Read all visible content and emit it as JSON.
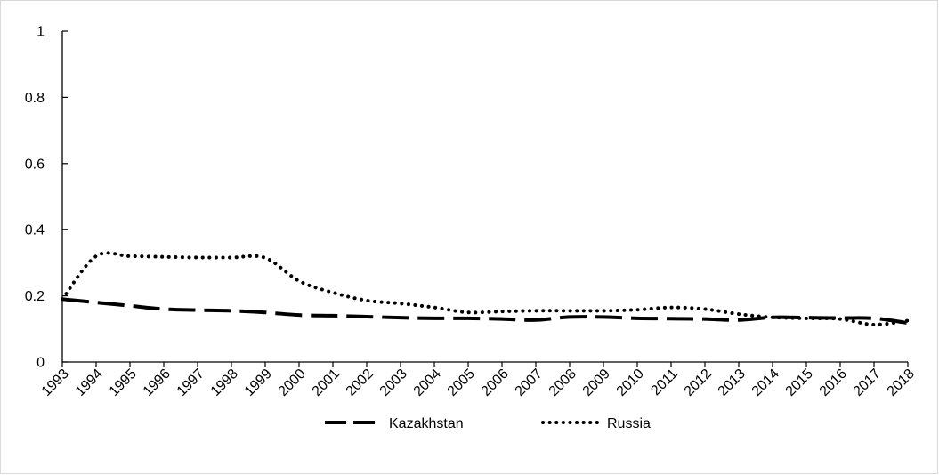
{
  "chart_data": {
    "type": "line",
    "title": "",
    "xlabel": "",
    "ylabel": "",
    "ylim": [
      0,
      1
    ],
    "yticks": [
      "0",
      "0.2",
      "0.4",
      "0.6",
      "0.8",
      "1"
    ],
    "x": [
      "1993",
      "1994",
      "1995",
      "1996",
      "1997",
      "1998",
      "1999",
      "2000",
      "2001",
      "2002",
      "2003",
      "2004",
      "2005",
      "2006",
      "2007",
      "2008",
      "2009",
      "2010",
      "2011",
      "2012",
      "2013",
      "2014",
      "2015",
      "2016",
      "2017",
      "2018"
    ],
    "grid": false,
    "legend_position": "bottom",
    "series": [
      {
        "name": "Kazakhstan",
        "style": "dashed",
        "color": "#000000",
        "values": [
          0.19,
          0.18,
          0.17,
          0.16,
          0.157,
          0.155,
          0.15,
          0.142,
          0.14,
          0.137,
          0.134,
          0.132,
          0.132,
          0.13,
          0.127,
          0.136,
          0.136,
          0.132,
          0.131,
          0.13,
          0.127,
          0.135,
          0.134,
          0.133,
          0.132,
          0.118
        ]
      },
      {
        "name": "Russia",
        "style": "dotted",
        "color": "#000000",
        "values": [
          0.19,
          0.32,
          0.32,
          0.318,
          0.316,
          0.316,
          0.315,
          0.245,
          0.21,
          0.186,
          0.177,
          0.165,
          0.15,
          0.153,
          0.155,
          0.155,
          0.155,
          0.158,
          0.165,
          0.16,
          0.145,
          0.135,
          0.132,
          0.13,
          0.113,
          0.125
        ]
      }
    ]
  }
}
